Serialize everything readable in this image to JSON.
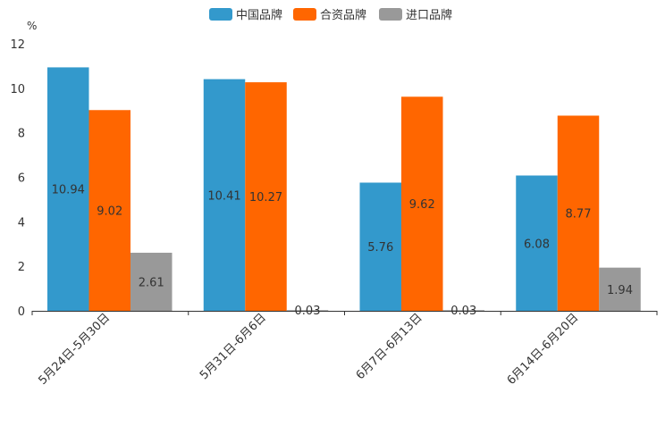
{
  "chart_data": {
    "type": "bar",
    "unit_label": "%",
    "categories": [
      "5月24日-5月30日",
      "5月31日-6月6日",
      "6月7日-6月13日",
      "6月14日-6月20日"
    ],
    "series": [
      {
        "name": "中国品牌",
        "color": "#3399CC",
        "values": [
          10.94,
          10.41,
          5.76,
          6.08
        ]
      },
      {
        "name": "合资品牌",
        "color": "#FF6600",
        "values": [
          9.02,
          10.27,
          9.62,
          8.77
        ]
      },
      {
        "name": "进口品牌",
        "color": "#999999",
        "values": [
          2.61,
          0.03,
          0.03,
          1.94
        ]
      }
    ],
    "ylim": [
      0,
      12
    ],
    "yticks": [
      0,
      2,
      4,
      6,
      8,
      10,
      12
    ],
    "legend_position": "top-center",
    "grid": false
  }
}
